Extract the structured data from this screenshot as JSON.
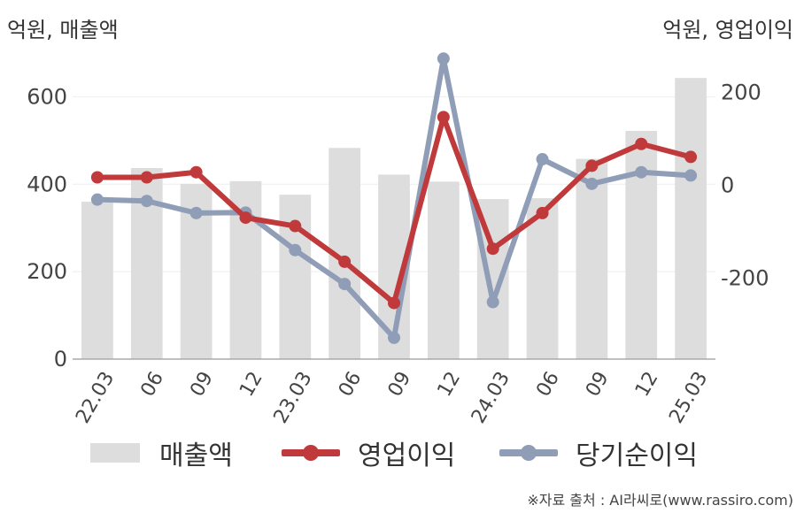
{
  "units": {
    "left": "억원, 매출액",
    "right": "억원, 영업이익"
  },
  "source": "※자료 출처 : AI라씨로(www.rassiro.com)",
  "colors": {
    "revenue": "#dddddd",
    "operating_profit": "#c0393b",
    "net_income": "#8f9db7",
    "axis": "#aaaaaa",
    "grid": "#eeeeee",
    "text": "#444444"
  },
  "chart_data": {
    "type": "bar",
    "categories": [
      "22.03",
      "06",
      "09",
      "12",
      "23.03",
      "06",
      "09",
      "12",
      "24.03",
      "06",
      "09",
      "12",
      "25.03"
    ],
    "left_axis": {
      "ticks": [
        0,
        200,
        400,
        600
      ],
      "ylim": [
        0,
        700
      ]
    },
    "right_axis": {
      "ticks": [
        -200,
        0,
        200
      ],
      "ylim": [
        -375,
        285
      ]
    },
    "series": [
      {
        "name": "매출액",
        "type": "bar",
        "axis": "left",
        "color": "#dddddd",
        "values": [
          360,
          437,
          401,
          407,
          376,
          483,
          422,
          406,
          366,
          368,
          458,
          522,
          643
        ]
      },
      {
        "name": "영업이익",
        "type": "line",
        "axis": "right",
        "color": "#c0393b",
        "values": [
          17,
          17,
          28,
          -70,
          -88,
          -165,
          -254,
          147,
          -137,
          -60,
          42,
          89,
          61
        ]
      },
      {
        "name": "당기순이익",
        "type": "line",
        "axis": "right",
        "color": "#8f9db7",
        "values": [
          -31,
          -34,
          -60,
          -59,
          -140,
          -213,
          -329,
          273,
          -252,
          56,
          3,
          28,
          21
        ]
      }
    ],
    "grid": true,
    "legend_position": "bottom"
  }
}
